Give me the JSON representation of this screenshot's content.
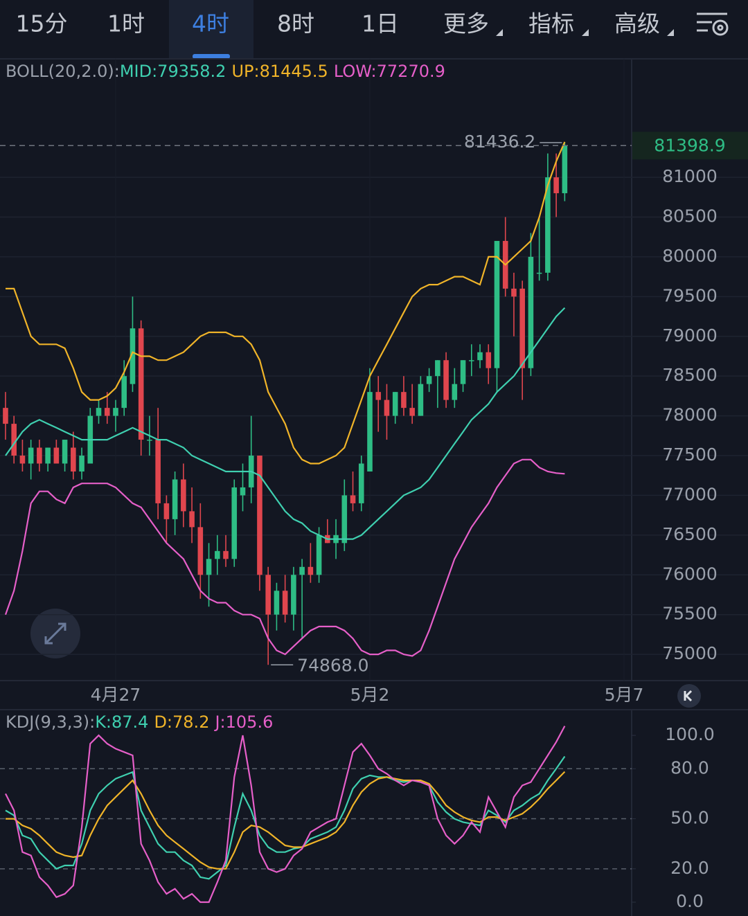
{
  "tabs": [
    "15分",
    "1时",
    "4时",
    "8时",
    "1日",
    "更多",
    "指标",
    "高级"
  ],
  "selected_tab": 2,
  "chart_data": [
    {
      "type": "candlestick",
      "indicator": "BOLL(20,2.0):",
      "up_color": "#2ebd85",
      "down_color": "#e0464e",
      "xlim": [
        -0.65,
        73.9
      ],
      "xticks": [
        {
          "value": 13,
          "label": "4月27"
        },
        {
          "value": 43,
          "label": "5月2"
        },
        {
          "value": 73,
          "label": "5月7"
        }
      ],
      "ylim": [
        74670,
        82490
      ],
      "yticks": [
        75000,
        75500,
        76000,
        76500,
        77000,
        77500,
        78000,
        78500,
        79000,
        79500,
        80000,
        80500,
        81000
      ],
      "grid": true,
      "ohlc": [
        [
          78100,
          78300,
          77700,
          77900
        ],
        [
          77900,
          78000,
          77400,
          77500
        ],
        [
          77500,
          77700,
          77300,
          77400
        ],
        [
          77400,
          77700,
          77200,
          77600
        ],
        [
          77600,
          77700,
          77300,
          77400
        ],
        [
          77400,
          77600,
          77300,
          77600
        ],
        [
          77600,
          77700,
          77400,
          77400
        ],
        [
          77400,
          77700,
          77300,
          77700
        ],
        [
          77600,
          77800,
          77200,
          77300
        ],
        [
          77300,
          77600,
          77200,
          77500
        ],
        [
          77400,
          78100,
          77400,
          78000
        ],
        [
          78000,
          78200,
          77900,
          78100
        ],
        [
          78100,
          78300,
          77900,
          78000
        ],
        [
          78000,
          78200,
          77800,
          78100
        ],
        [
          78100,
          78700,
          78000,
          78500
        ],
        [
          78400,
          79500,
          78300,
          79100
        ],
        [
          79100,
          79200,
          77500,
          77700
        ],
        [
          77700,
          78000,
          77500,
          77700
        ],
        [
          77700,
          78100,
          76700,
          76900
        ],
        [
          76900,
          77000,
          76400,
          76700
        ],
        [
          76700,
          77300,
          76500,
          77200
        ],
        [
          77200,
          77400,
          76600,
          76800
        ],
        [
          76800,
          77100,
          76400,
          76600
        ],
        [
          76600,
          76900,
          75700,
          76000
        ],
        [
          76000,
          76400,
          75600,
          76200
        ],
        [
          76200,
          76500,
          76000,
          76300
        ],
        [
          76300,
          76500,
          76100,
          76200
        ],
        [
          76200,
          77200,
          76100,
          77100
        ],
        [
          77000,
          77400,
          76800,
          77100
        ],
        [
          77100,
          78000,
          76900,
          77500
        ],
        [
          77500,
          77500,
          75800,
          76000
        ],
        [
          76000,
          76100,
          74868,
          75500
        ],
        [
          75500,
          75900,
          75300,
          75800
        ],
        [
          75800,
          76000,
          75400,
          75500
        ],
        [
          75500,
          76100,
          75300,
          76000
        ],
        [
          76000,
          76200,
          75200,
          76100
        ],
        [
          76100,
          76400,
          75900,
          76000
        ],
        [
          76000,
          76600,
          75900,
          76500
        ],
        [
          76500,
          76700,
          76400,
          76400
        ],
        [
          76400,
          76700,
          76200,
          76500
        ],
        [
          76400,
          77200,
          76300,
          77000
        ],
        [
          77000,
          77300,
          76800,
          76900
        ],
        [
          76900,
          77500,
          76800,
          77400
        ],
        [
          77300,
          78600,
          77300,
          78300
        ],
        [
          78300,
          78500,
          77800,
          78200
        ],
        [
          78200,
          78400,
          77700,
          78000
        ],
        [
          78000,
          78300,
          77900,
          78300
        ],
        [
          78300,
          78500,
          78000,
          78100
        ],
        [
          78100,
          78400,
          77900,
          78000
        ],
        [
          78000,
          78500,
          78000,
          78400
        ],
        [
          78400,
          78600,
          78300,
          78500
        ],
        [
          78500,
          78700,
          78100,
          78700
        ],
        [
          78700,
          78800,
          78100,
          78200
        ],
        [
          78200,
          78600,
          78100,
          78400
        ],
        [
          78400,
          78700,
          78300,
          78700
        ],
        [
          78700,
          78900,
          78500,
          78700
        ],
        [
          78700,
          78900,
          78600,
          78800
        ],
        [
          78800,
          78900,
          78400,
          78600
        ],
        [
          78600,
          80200,
          78300,
          80200
        ],
        [
          80200,
          80500,
          79500,
          79600
        ],
        [
          79600,
          79800,
          79000,
          79500
        ],
        [
          79600,
          79700,
          78200,
          78600
        ],
        [
          78600,
          80300,
          78500,
          80000
        ],
        [
          79800,
          80500,
          79700,
          79800
        ],
        [
          79800,
          81300,
          79700,
          81000
        ],
        [
          81000,
          81300,
          80500,
          80800
        ],
        [
          80800,
          81436.2,
          80700,
          81398.9
        ]
      ],
      "series": [
        {
          "name": "MID:79358.2",
          "color": "#3fd0b0",
          "values": [
            77500,
            77650,
            77800,
            77900,
            77950,
            77900,
            77850,
            77800,
            77750,
            77700,
            77700,
            77700,
            77700,
            77750,
            77800,
            77850,
            77800,
            77750,
            77700,
            77700,
            77650,
            77600,
            77500,
            77450,
            77400,
            77350,
            77300,
            77300,
            77300,
            77300,
            77250,
            77100,
            76950,
            76800,
            76700,
            76650,
            76550,
            76500,
            76450,
            76450,
            76450,
            76450,
            76500,
            76600,
            76700,
            76800,
            76900,
            77000,
            77050,
            77100,
            77200,
            77350,
            77500,
            77650,
            77800,
            77950,
            78050,
            78150,
            78300,
            78400,
            78500,
            78650,
            78800,
            78950,
            79100,
            79250,
            79358.2
          ]
        },
        {
          "name": "UP:81445.5",
          "color": "#f0b429",
          "values": [
            79600,
            79600,
            79300,
            79000,
            78900,
            78900,
            78900,
            78850,
            78600,
            78300,
            78200,
            78200,
            78250,
            78350,
            78550,
            78800,
            78750,
            78750,
            78700,
            78700,
            78750,
            78800,
            78900,
            79000,
            79050,
            79050,
            79050,
            79000,
            79000,
            78900,
            78700,
            78300,
            78100,
            77900,
            77600,
            77450,
            77400,
            77400,
            77450,
            77500,
            77600,
            77900,
            78200,
            78500,
            78700,
            78900,
            79100,
            79300,
            79500,
            79600,
            79650,
            79650,
            79700,
            79750,
            79750,
            79700,
            79650,
            80000,
            80000,
            79900,
            80000,
            80100,
            80200,
            80500,
            80900,
            81200,
            81445.5
          ]
        },
        {
          "name": "LOW:77270.9",
          "color": "#e65fc9",
          "values": [
            75500,
            75800,
            76300,
            76900,
            77050,
            77050,
            76950,
            76900,
            77100,
            77150,
            77150,
            77150,
            77150,
            77100,
            77000,
            76900,
            76850,
            76700,
            76550,
            76400,
            76300,
            76200,
            76000,
            75800,
            75700,
            75650,
            75650,
            75550,
            75500,
            75500,
            75450,
            75200,
            75050,
            75000,
            75100,
            75200,
            75300,
            75350,
            75350,
            75350,
            75300,
            75200,
            75050,
            75000,
            75000,
            75050,
            75050,
            75000,
            74980,
            75050,
            75300,
            75600,
            75900,
            76200,
            76400,
            76600,
            76750,
            76900,
            77100,
            77250,
            77400,
            77450,
            77450,
            77350,
            77300,
            77280,
            77270.9
          ]
        }
      ],
      "high_marker": 81436.2,
      "low_marker": {
        "value": 74868,
        "label": "74868.0"
      },
      "last_price": 81398.9
    },
    {
      "type": "line",
      "indicator": "KDJ(9,3,3):",
      "xlim": [
        -0.65,
        73.9
      ],
      "ylim": [
        -8.3,
        115.4
      ],
      "yticks": [
        {
          "value": 0,
          "label": "0.0"
        },
        {
          "value": 20,
          "label": "20.0"
        },
        {
          "value": 50,
          "label": "50.0"
        },
        {
          "value": 80,
          "label": "80.0"
        },
        {
          "value": 100,
          "label": "100.0"
        }
      ],
      "dashed_grid": [
        20,
        50,
        80
      ],
      "series": [
        {
          "name": "K:87.4",
          "color": "#3fd0b0",
          "values": [
            55,
            52,
            40,
            38,
            30,
            25,
            20,
            22,
            22,
            35,
            55,
            65,
            70,
            74,
            76,
            78,
            55,
            45,
            35,
            30,
            30,
            25,
            22,
            15,
            14,
            18,
            22,
            45,
            65,
            55,
            40,
            33,
            30,
            30,
            32,
            33,
            38,
            40,
            42,
            45,
            55,
            68,
            74,
            76,
            75,
            75,
            73,
            72,
            73,
            72,
            70,
            60,
            54,
            50,
            48,
            47,
            46,
            55,
            52,
            48,
            55,
            58,
            62,
            65,
            73,
            80,
            87.4
          ]
        },
        {
          "name": "D:78.2",
          "color": "#f0b429",
          "values": [
            50,
            50,
            46,
            44,
            40,
            35,
            30,
            28,
            27,
            28,
            40,
            50,
            58,
            63,
            68,
            73,
            65,
            55,
            46,
            40,
            36,
            32,
            28,
            24,
            21,
            20,
            20,
            30,
            42,
            46,
            45,
            42,
            38,
            34,
            33,
            33,
            35,
            37,
            39,
            42,
            48,
            58,
            66,
            71,
            74,
            75,
            74,
            73,
            73,
            73,
            71,
            65,
            58,
            54,
            51,
            49,
            48,
            51,
            51,
            49,
            51,
            53,
            57,
            62,
            68,
            73,
            78.2
          ]
        },
        {
          "name": "J:105.6",
          "color": "#e65fc9",
          "values": [
            65,
            55,
            30,
            28,
            15,
            10,
            3,
            5,
            10,
            45,
            95,
            100,
            95,
            92,
            90,
            88,
            35,
            25,
            12,
            5,
            8,
            2,
            5,
            0,
            0,
            12,
            25,
            75,
            100,
            70,
            30,
            20,
            18,
            20,
            28,
            32,
            42,
            45,
            48,
            50,
            70,
            90,
            95,
            88,
            80,
            77,
            73,
            70,
            73,
            72,
            70,
            50,
            40,
            35,
            40,
            48,
            42,
            63,
            54,
            45,
            63,
            70,
            72,
            80,
            88,
            96,
            105.6
          ]
        }
      ]
    }
  ]
}
